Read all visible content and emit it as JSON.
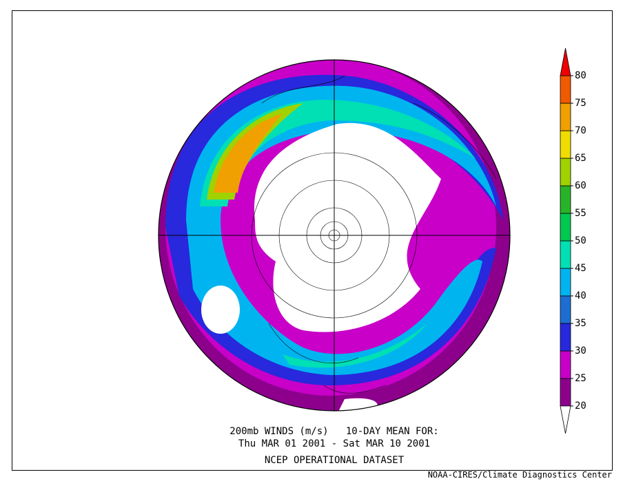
{
  "caption": [
    "200mb WINDS (m/s)   10-DAY MEAN FOR:",
    "Thu MAR 01 2001 - Sat MAR 10 2001",
    "NCEP OPERATIONAL DATASET"
  ],
  "credit": "NOAA-CIRES/Climate Diagnostics Center",
  "legend": {
    "ticks": [
      20,
      25,
      30,
      35,
      40,
      45,
      50,
      55,
      60,
      65,
      70,
      75,
      80
    ],
    "colors": [
      "#ffffff",
      "#8c008c",
      "#c800c8",
      "#2828dc",
      "#1e6ed2",
      "#00b4f0",
      "#00e0b4",
      "#00c850",
      "#28b428",
      "#a0d200",
      "#f0dc00",
      "#f0a000",
      "#f05a00",
      "#f00000"
    ]
  }
}
